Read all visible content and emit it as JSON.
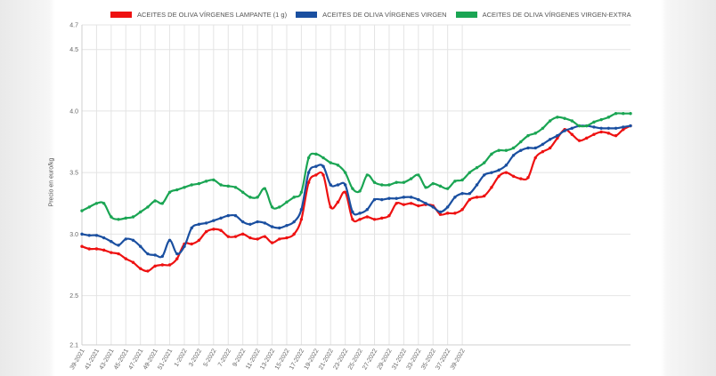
{
  "chart_data": {
    "type": "line",
    "ylabel": "Precio en euro/kg",
    "yticks": [
      2.1,
      2.5,
      3.0,
      3.5,
      4.0,
      4.5,
      4.7
    ],
    "ylim": [
      2.1,
      4.7
    ],
    "grid": true,
    "legend_position": "top",
    "x_tick_labels": [
      "39-2021",
      "41-2021",
      "43-2021",
      "45-2021",
      "47-2021",
      "49-2021",
      "51-2021",
      "1-2022",
      "3-2022",
      "5-2022",
      "7-2022",
      "9-2022",
      "11-2022",
      "13-2022",
      "15-2022",
      "17-2022",
      "19-2022",
      "21-2022",
      "23-2022",
      "25-2022",
      "27-2022",
      "29-2022",
      "31-2022",
      "33-2022",
      "35-2022",
      "37-2022",
      "39-2022"
    ],
    "points_per_tick": 2,
    "series": [
      {
        "name": "ACEITES DE OLIVA VÍRGENES LAMPANTE (1 g)",
        "color": "#ee1111",
        "values": [
          2.9,
          2.88,
          2.88,
          2.87,
          2.85,
          2.84,
          2.8,
          2.77,
          2.72,
          2.7,
          2.74,
          2.75,
          2.75,
          2.8,
          2.92,
          2.92,
          2.95,
          3.02,
          3.04,
          3.03,
          2.98,
          2.98,
          3.0,
          2.97,
          2.96,
          2.98,
          2.93,
          2.96,
          2.97,
          3.0,
          3.12,
          3.42,
          3.48,
          3.48,
          3.22,
          3.26,
          3.34,
          3.12,
          3.12,
          3.14,
          3.12,
          3.13,
          3.15,
          3.25,
          3.24,
          3.25,
          3.23,
          3.24,
          3.23,
          3.16,
          3.17,
          3.17,
          3.2,
          3.28,
          3.3,
          3.31,
          3.38,
          3.47,
          3.5,
          3.47,
          3.45,
          3.46,
          3.62,
          3.67,
          3.7,
          3.78,
          3.85,
          3.81,
          3.76,
          3.78,
          3.81,
          3.83,
          3.82,
          3.8,
          3.85,
          3.88
        ]
      },
      {
        "name": "ACEITES DE OLIVA VÍRGENES VIRGEN",
        "color": "#1a4fa0",
        "values": [
          3.0,
          2.99,
          2.99,
          2.97,
          2.94,
          2.91,
          2.96,
          2.95,
          2.9,
          2.84,
          2.83,
          2.82,
          2.95,
          2.84,
          2.9,
          3.05,
          3.08,
          3.09,
          3.11,
          3.13,
          3.15,
          3.15,
          3.1,
          3.08,
          3.1,
          3.09,
          3.06,
          3.05,
          3.07,
          3.1,
          3.2,
          3.5,
          3.55,
          3.55,
          3.4,
          3.4,
          3.4,
          3.18,
          3.17,
          3.2,
          3.28,
          3.28,
          3.29,
          3.29,
          3.3,
          3.3,
          3.28,
          3.25,
          3.22,
          3.18,
          3.22,
          3.3,
          3.33,
          3.33,
          3.4,
          3.48,
          3.5,
          3.52,
          3.56,
          3.64,
          3.68,
          3.7,
          3.7,
          3.73,
          3.77,
          3.8,
          3.84,
          3.86,
          3.88,
          3.88,
          3.87,
          3.86,
          3.86,
          3.86,
          3.87,
          3.88
        ]
      },
      {
        "name": "ACEITES DE OLIVA VÍRGENES VIRGEN-EXTRA",
        "color": "#1aa553",
        "values": [
          3.19,
          3.22,
          3.25,
          3.25,
          3.14,
          3.12,
          3.13,
          3.14,
          3.18,
          3.22,
          3.27,
          3.25,
          3.34,
          3.36,
          3.38,
          3.4,
          3.41,
          3.43,
          3.44,
          3.4,
          3.39,
          3.38,
          3.34,
          3.3,
          3.3,
          3.37,
          3.22,
          3.22,
          3.26,
          3.3,
          3.34,
          3.62,
          3.65,
          3.62,
          3.58,
          3.56,
          3.5,
          3.37,
          3.35,
          3.48,
          3.42,
          3.4,
          3.4,
          3.42,
          3.42,
          3.45,
          3.48,
          3.38,
          3.41,
          3.39,
          3.37,
          3.43,
          3.44,
          3.5,
          3.54,
          3.58,
          3.65,
          3.68,
          3.68,
          3.7,
          3.75,
          3.8,
          3.82,
          3.86,
          3.92,
          3.95,
          3.94,
          3.92,
          3.88,
          3.88,
          3.91,
          3.93,
          3.95,
          3.98,
          3.98,
          3.98
        ]
      }
    ]
  }
}
